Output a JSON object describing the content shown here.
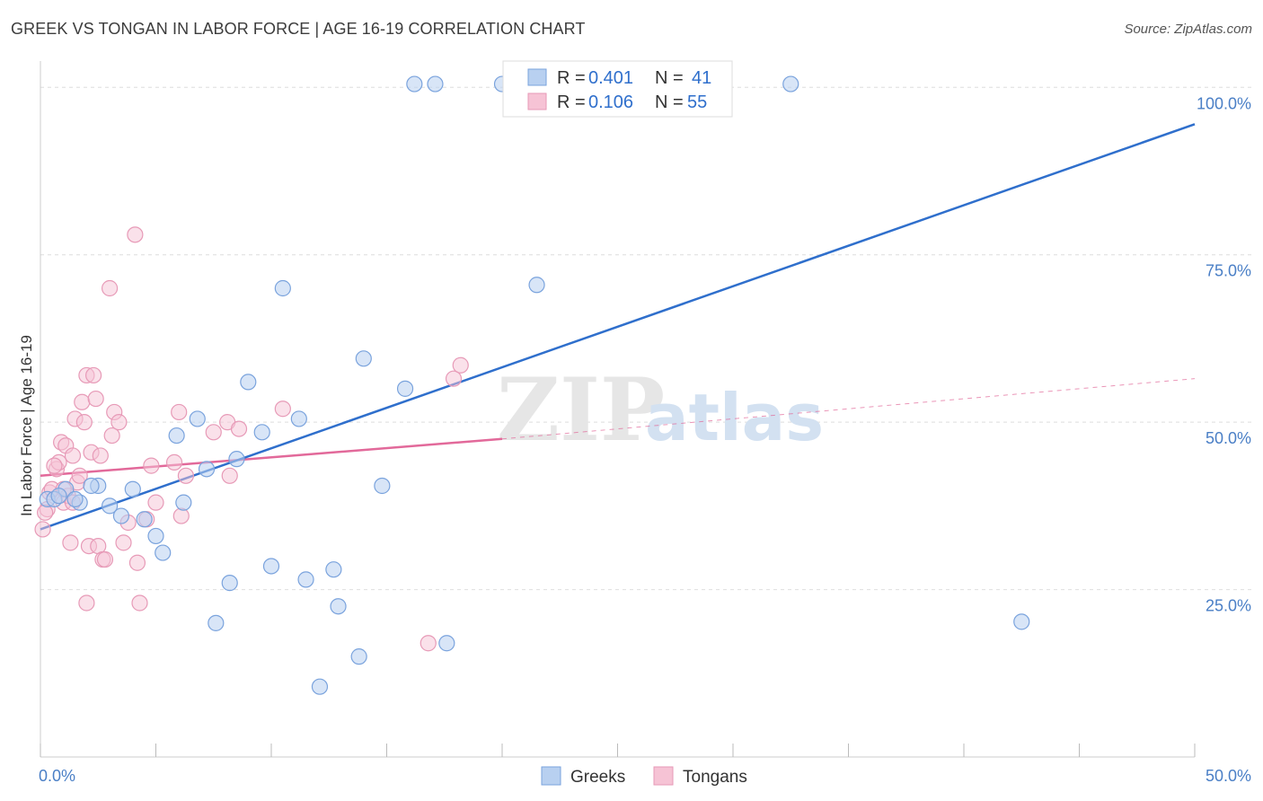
{
  "title": "GREEK VS TONGAN IN LABOR FORCE | AGE 16-19 CORRELATION CHART",
  "source": "Source: ZipAtlas.com",
  "colors": {
    "blue": "#2f6fcc",
    "blue_fill": "#b8d0f0",
    "pink": "#e2699a",
    "pink_fill": "#f6c3d5",
    "axis_tick": "#4a7fc6"
  },
  "chart_data": {
    "type": "scatter",
    "title": "GREEK VS TONGAN IN LABOR FORCE | AGE 16-19 CORRELATION CHART",
    "xlabel": "",
    "ylabel": "In Labor Force | Age 16-19",
    "xlim": [
      0,
      50
    ],
    "ylim": [
      0,
      105
    ],
    "x_tick_labels": {
      "left": "0.0%",
      "right": "50.0%"
    },
    "y_ticks": [
      {
        "value": 25,
        "label": "25.0%"
      },
      {
        "value": 50,
        "label": "50.0%"
      },
      {
        "value": 75,
        "label": "75.0%"
      },
      {
        "value": 100,
        "label": "100.0%"
      }
    ],
    "legend": {
      "rows": [
        {
          "r_label": "R =",
          "r_value": "0.401",
          "n_label": "N =",
          "n_value": "41"
        },
        {
          "r_label": "R =",
          "r_value": "0.106",
          "n_label": "N =",
          "n_value": "55"
        }
      ]
    },
    "series": [
      {
        "name": "Greeks",
        "trend": {
          "x0": 0,
          "y0": 34.0,
          "x1": 50,
          "y1": 94.5
        },
        "points": [
          [
            0.3,
            38.5
          ],
          [
            0.6,
            38.5
          ],
          [
            1.1,
            40
          ],
          [
            1.7,
            38
          ],
          [
            2.5,
            40.5
          ],
          [
            3.0,
            37.5
          ],
          [
            3.5,
            36
          ],
          [
            4.0,
            40
          ],
          [
            4.5,
            35.5
          ],
          [
            5.0,
            33
          ],
          [
            5.3,
            30.5
          ],
          [
            5.9,
            48
          ],
          [
            6.2,
            38
          ],
          [
            6.8,
            50.5
          ],
          [
            7.2,
            43
          ],
          [
            7.6,
            20
          ],
          [
            8.2,
            26
          ],
          [
            8.5,
            44.5
          ],
          [
            9.0,
            56
          ],
          [
            9.6,
            48.5
          ],
          [
            10.0,
            28.5
          ],
          [
            10.5,
            70
          ],
          [
            11.2,
            50.5
          ],
          [
            11.5,
            26.5
          ],
          [
            12.1,
            10.5
          ],
          [
            12.7,
            28
          ],
          [
            12.9,
            22.5
          ],
          [
            13.8,
            15
          ],
          [
            14.0,
            59.5
          ],
          [
            14.8,
            40.5
          ],
          [
            15.8,
            55
          ],
          [
            16.2,
            100.5
          ],
          [
            17.1,
            100.5
          ],
          [
            17.6,
            17
          ],
          [
            20.0,
            100.5
          ],
          [
            21.5,
            70.5
          ],
          [
            32.5,
            100.5
          ],
          [
            42.5,
            20.2
          ],
          [
            1.5,
            38.5
          ],
          [
            2.2,
            40.5
          ],
          [
            0.8,
            39
          ]
        ]
      },
      {
        "name": "Tongans",
        "trend": {
          "x0": 0,
          "y0": 42.0,
          "x1": 20,
          "y1": 47.5,
          "dash_x1": 50,
          "dash_y1": 56.5
        },
        "points": [
          [
            0.1,
            34
          ],
          [
            0.3,
            37
          ],
          [
            0.4,
            39.5
          ],
          [
            0.5,
            40
          ],
          [
            0.7,
            43
          ],
          [
            0.8,
            44
          ],
          [
            0.9,
            47
          ],
          [
            1.0,
            38
          ],
          [
            1.1,
            46.5
          ],
          [
            1.2,
            39
          ],
          [
            1.3,
            32
          ],
          [
            1.4,
            45
          ],
          [
            1.5,
            50.5
          ],
          [
            1.6,
            41
          ],
          [
            1.7,
            42
          ],
          [
            1.8,
            53
          ],
          [
            1.9,
            50
          ],
          [
            2.0,
            57
          ],
          [
            2.1,
            31.5
          ],
          [
            2.2,
            45.5
          ],
          [
            2.3,
            57
          ],
          [
            2.4,
            53.5
          ],
          [
            2.5,
            31.5
          ],
          [
            2.6,
            45
          ],
          [
            2.7,
            29.5
          ],
          [
            2.8,
            29.5
          ],
          [
            3.0,
            70
          ],
          [
            3.1,
            48
          ],
          [
            3.2,
            51.5
          ],
          [
            3.4,
            50
          ],
          [
            3.6,
            32
          ],
          [
            3.8,
            35
          ],
          [
            4.1,
            78
          ],
          [
            4.2,
            29
          ],
          [
            4.3,
            23
          ],
          [
            4.6,
            35.5
          ],
          [
            4.8,
            43.5
          ],
          [
            5.0,
            38
          ],
          [
            5.8,
            44
          ],
          [
            6.0,
            51.5
          ],
          [
            6.1,
            36
          ],
          [
            6.3,
            42
          ],
          [
            7.5,
            48.5
          ],
          [
            8.1,
            50
          ],
          [
            8.2,
            42
          ],
          [
            8.6,
            49
          ],
          [
            10.5,
            52
          ],
          [
            16.8,
            17
          ],
          [
            17.9,
            56.5
          ],
          [
            18.2,
            58.5
          ],
          [
            2.0,
            23
          ],
          [
            1.0,
            40
          ],
          [
            0.2,
            36.5
          ],
          [
            0.6,
            43.5
          ],
          [
            1.4,
            38
          ]
        ]
      }
    ]
  },
  "bottom_legend": {
    "greeks": "Greeks",
    "tongans": "Tongans"
  },
  "watermark": {
    "zip": "ZIP",
    "atlas": "atlas"
  }
}
